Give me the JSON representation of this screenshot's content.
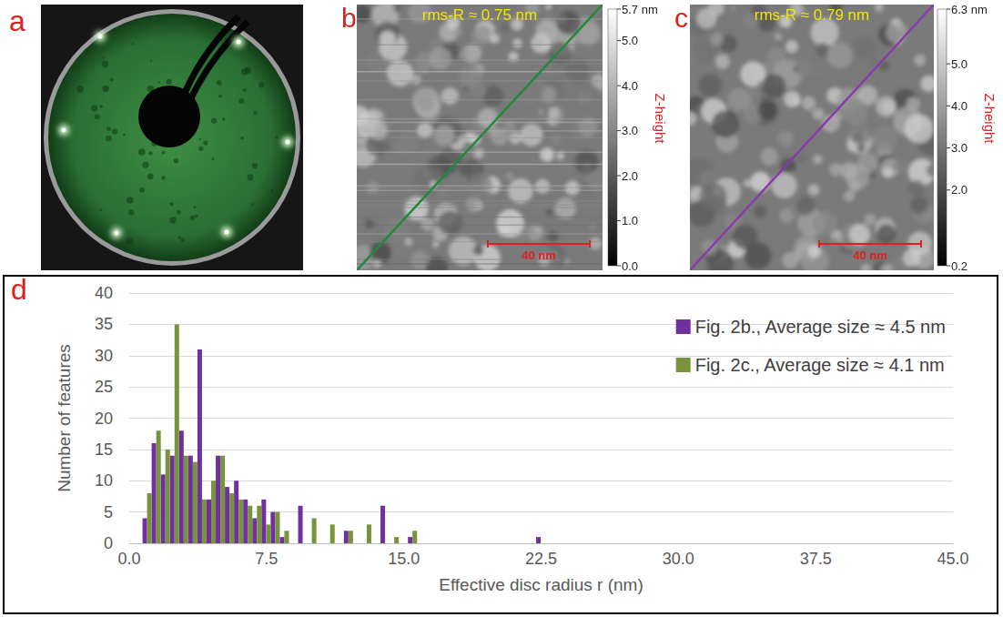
{
  "panels": {
    "a": {
      "label": "a"
    },
    "b": {
      "label": "b",
      "rms": "rms-R ≈ 0.75 nm",
      "scale_bar": {
        "length": 40,
        "label": "40 nm"
      },
      "colorbar": {
        "title": "Z-height",
        "range": [
          0,
          5.7
        ],
        "ticks": [
          {
            "value": 5.7,
            "label": "5.7 nm"
          },
          {
            "value": 5,
            "label": "5.0"
          },
          {
            "value": 4,
            "label": "4.0"
          },
          {
            "value": 3,
            "label": "3.0"
          },
          {
            "value": 2,
            "label": "2.0"
          },
          {
            "value": 1,
            "label": "1.0"
          },
          {
            "value": 0,
            "label": "0.0"
          }
        ]
      }
    },
    "c": {
      "label": "c",
      "rms": "rms-R ≈ 0.79 nm",
      "scale_bar": {
        "length": 40,
        "label": "40 nm"
      },
      "colorbar": {
        "title": "Z-height",
        "range": [
          0.2,
          6.3
        ],
        "ticks": [
          {
            "value": 6.3,
            "label": "6.3 nm"
          },
          {
            "value": 5,
            "label": "5.0"
          },
          {
            "value": 4,
            "label": "4.0"
          },
          {
            "value": 3,
            "label": "3.0"
          },
          {
            "value": 2,
            "label": "2.0"
          },
          0.2
        ]
      }
    },
    "d": {
      "label": "d"
    }
  },
  "chart_data": {
    "type": "bar",
    "x_label": "Effective disc radius r (nm)",
    "y_label": "Number of features",
    "series": [
      {
        "name": "Fig. 2b., Average size ≈ 4.5 nm",
        "color": "#7030a0",
        "x": [
          0.85,
          1.35,
          1.85,
          2.35,
          2.85,
          3.35,
          3.85,
          4.35,
          4.85,
          5.35,
          5.85,
          6.35,
          6.85,
          7.35,
          7.85,
          8.35,
          9.35,
          11.85,
          13.85,
          15.35,
          22.35
        ],
        "values": [
          4,
          16,
          11,
          14,
          18,
          14,
          31,
          7,
          14,
          9,
          10,
          7,
          4,
          7,
          5,
          1,
          6,
          2,
          6,
          1,
          1
        ]
      },
      {
        "name": "Fig. 2c., Average size ≈ 4.1 nm",
        "color": "#77933c",
        "x": [
          1.1,
          1.6,
          2.1,
          2.6,
          3.1,
          3.6,
          4.1,
          4.6,
          5.1,
          5.6,
          6.1,
          6.6,
          7.1,
          7.6,
          8.1,
          8.6,
          10.1,
          11.1,
          12.1,
          13.1,
          14.6,
          15.6
        ],
        "values": [
          8,
          18,
          15,
          35,
          14,
          13,
          7,
          10,
          14,
          8,
          7,
          6,
          6,
          3,
          5,
          2,
          4,
          3,
          2,
          3,
          1,
          2
        ]
      }
    ],
    "xlim": [
      0,
      45
    ],
    "xticks": [
      {
        "value": 0,
        "label": "0.0"
      },
      7.5,
      {
        "value": 15,
        "label": "15.0"
      },
      22.5,
      {
        "value": 30,
        "label": "30.0"
      },
      37.5,
      {
        "value": 45,
        "label": "45.0"
      }
    ],
    "ylim": [
      0,
      40
    ],
    "yticks": [
      0,
      5,
      10,
      15,
      20,
      25,
      30,
      35,
      40
    ],
    "grid": true,
    "legend": "upper right"
  }
}
